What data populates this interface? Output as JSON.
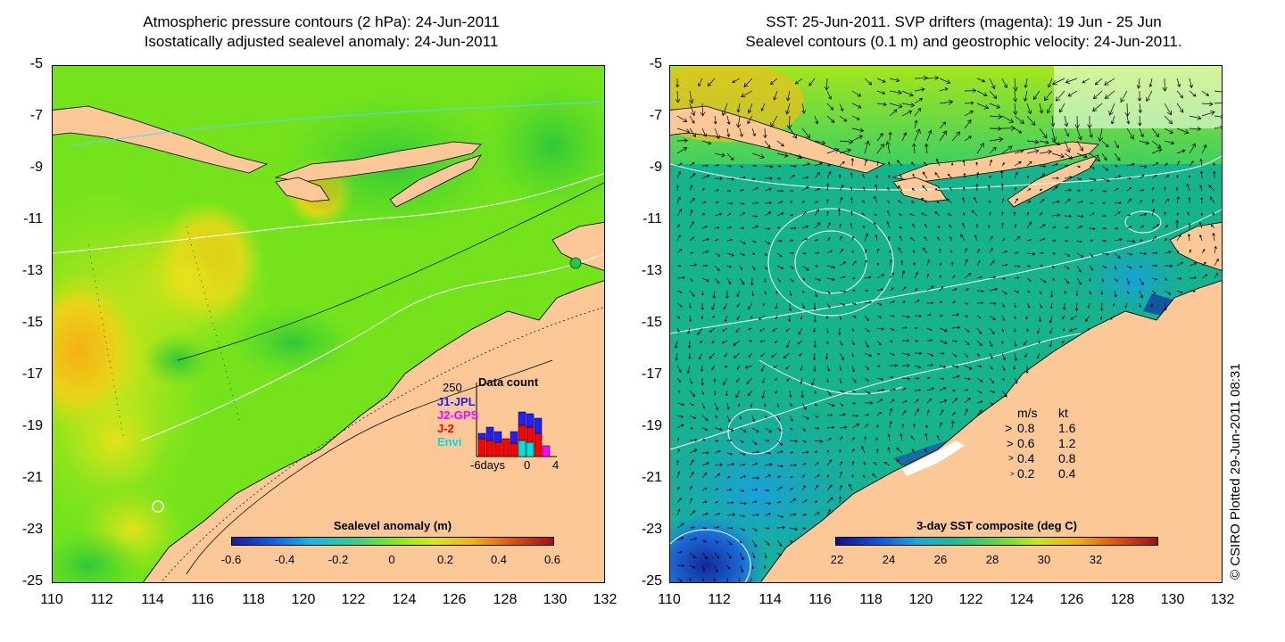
{
  "left": {
    "title_line1": "Atmospheric pressure contours (2 hPa): 24-Jun-2011",
    "title_line2": "Isostatically adjusted sealevel anomaly: 24-Jun-2011",
    "colorbar_label": "Sealevel anomaly (m)",
    "colorbar_ticks": [
      "-0.6",
      "-0.4",
      "-0.2",
      "0",
      "0.2",
      "0.4",
      "0.6"
    ],
    "data_count": {
      "title": "Data count",
      "max_label": "250",
      "legend": [
        {
          "label": "J1-JPL",
          "color": "#1f1fff"
        },
        {
          "label": "J2-GPS",
          "color": "#ff00ff"
        },
        {
          "label": "J-2",
          "color": "#ff0000"
        },
        {
          "label": "Envi",
          "color": "#00e0e0"
        }
      ],
      "axis_labels": [
        "-6days",
        "0",
        "4"
      ]
    }
  },
  "right": {
    "title_line1": "SST: 25-Jun-2011. SVP drifters (magenta): 19 Jun - 25 Jun",
    "title_line2": "Sealevel contours (0.1 m) and geostrophic velocity: 24-Jun-2011.",
    "colorbar_label": "3-day SST composite (deg C)",
    "colorbar_ticks": [
      "22",
      "24",
      "26",
      "28",
      "30",
      "32"
    ],
    "velocity_legend": {
      "header_ms": "m/s",
      "header_kt": "kt",
      "rows": [
        {
          "ms": "0.8",
          "kt": "1.6"
        },
        {
          "ms": "0.6",
          "kt": "1.2"
        },
        {
          "ms": "0.4",
          "kt": "0.8"
        },
        {
          "ms": "0.2",
          "kt": "0.4"
        }
      ]
    }
  },
  "axes": {
    "y_ticks": [
      "-5",
      "-7",
      "-9",
      "-11",
      "-13",
      "-15",
      "-17",
      "-19",
      "-21",
      "-23",
      "-25"
    ],
    "x_ticks": [
      "110",
      "112",
      "114",
      "116",
      "118",
      "120",
      "122",
      "124",
      "126",
      "128",
      "130",
      "132"
    ]
  },
  "credit": "© CSIRO Plotted 29-Jun-2011 08:31",
  "colors": {
    "land": "#fcc898",
    "sla_field": "#7fea18",
    "sst_field": "#16b88a"
  }
}
